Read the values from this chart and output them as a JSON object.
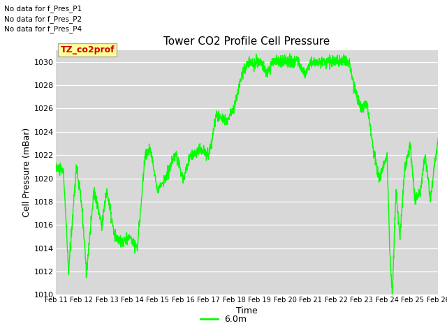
{
  "title": "Tower CO2 Profile Cell Pressure",
  "xlabel": "Time",
  "ylabel": "Cell Pressure (mBar)",
  "ylim": [
    1010,
    1031
  ],
  "yticks": [
    1010,
    1012,
    1014,
    1016,
    1018,
    1020,
    1022,
    1024,
    1026,
    1028,
    1030
  ],
  "xtick_labels": [
    "Feb 11",
    "Feb 12",
    "Feb 13",
    "Feb 14",
    "Feb 15",
    "Feb 16",
    "Feb 17",
    "Feb 18",
    "Feb 19",
    "Feb 20",
    "Feb 21",
    "Feb 22",
    "Feb 23",
    "Feb 24",
    "Feb 25",
    "Feb 26"
  ],
  "line_color": "#00ff00",
  "line_label": "6.0m",
  "bg_color": "#d8d8d8",
  "plot_bg_color": "#d8d8d8",
  "no_data_texts": [
    "No data for f_Pres_P1",
    "No data for f_Pres_P2",
    "No data for f_Pres_P4"
  ],
  "legend_label": "TZ_co2prof",
  "legend_bg": "#ffff99",
  "legend_border": "#aaaaaa"
}
